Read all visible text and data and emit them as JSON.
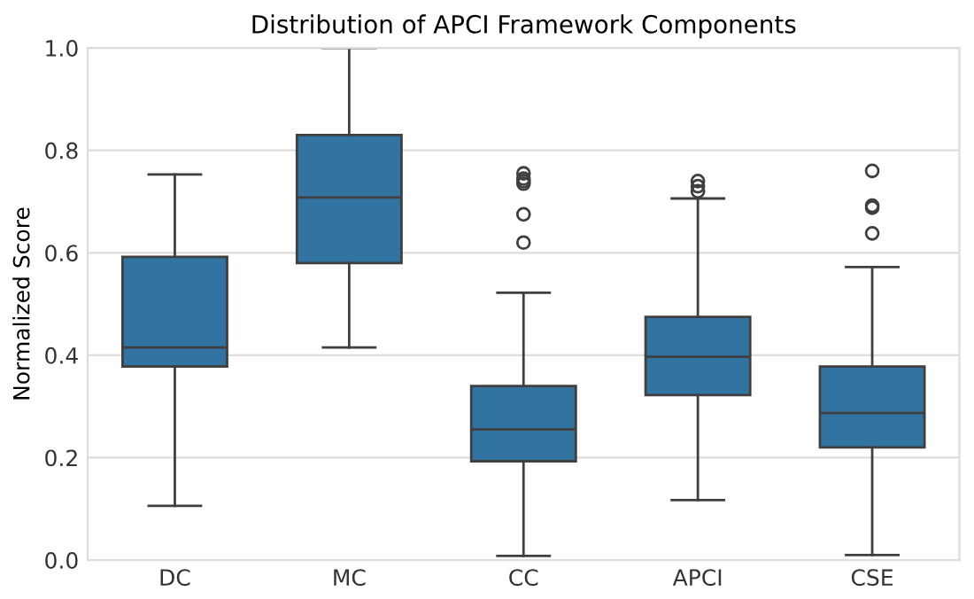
{
  "chart_data": {
    "type": "box",
    "title": "Distribution of APCI Framework Components",
    "ylabel": "Normalized Score",
    "categories": [
      "DC",
      "MC",
      "CC",
      "APCI",
      "CSE"
    ],
    "boxes": [
      {
        "low": 0.106,
        "q1": 0.378,
        "median": 0.415,
        "q3": 0.592,
        "high": 0.753
      },
      {
        "low": 0.415,
        "q1": 0.58,
        "median": 0.708,
        "q3": 0.83,
        "high": 1.0
      },
      {
        "low": 0.008,
        "q1": 0.193,
        "median": 0.255,
        "q3": 0.34,
        "high": 0.522,
        "outliers": [
          0.62,
          0.675,
          0.735,
          0.74,
          0.745,
          0.755
        ]
      },
      {
        "low": 0.117,
        "q1": 0.322,
        "median": 0.397,
        "q3": 0.475,
        "high": 0.706,
        "outliers": [
          0.72,
          0.73,
          0.74
        ]
      },
      {
        "low": 0.01,
        "q1": 0.22,
        "median": 0.287,
        "q3": 0.378,
        "high": 0.572,
        "outliers": [
          0.638,
          0.688,
          0.692,
          0.76
        ]
      }
    ],
    "color": "#3274a1",
    "ylim": [
      0,
      1.0
    ],
    "yticks": [
      {
        "value": 0,
        "label": "0.0"
      },
      0.2,
      0.4,
      0.6,
      0.8,
      {
        "value": 1,
        "label": "1.0"
      }
    ],
    "grid": "y"
  }
}
